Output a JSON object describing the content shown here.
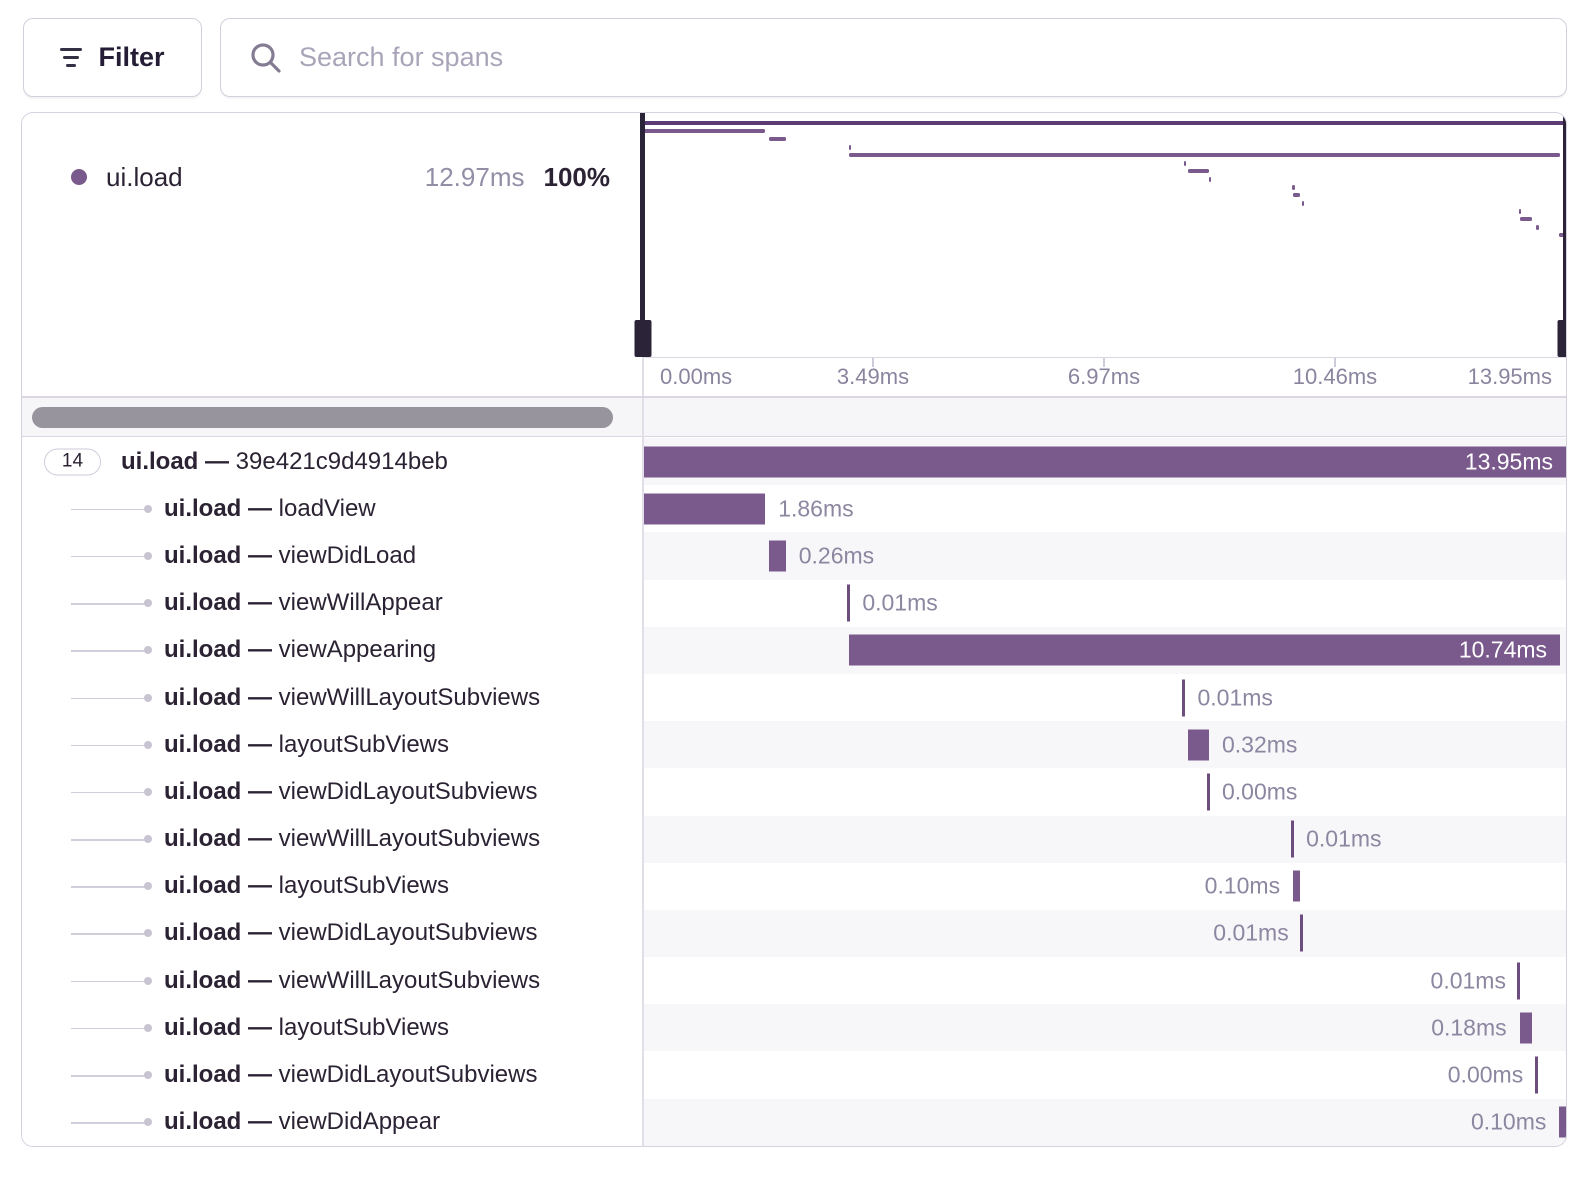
{
  "toolbar": {
    "filter_label": "Filter",
    "search_placeholder": "Search for spans"
  },
  "legend": {
    "op": "ui.load",
    "duration": "12.97ms",
    "percent": "100%"
  },
  "axis": {
    "tick_labels": [
      "0.00ms",
      "3.49ms",
      "6.97ms",
      "10.46ms",
      "13.95ms"
    ]
  },
  "trace": {
    "op_prefix": "ui.load",
    "separator": "—",
    "root_child_count": "14",
    "total_ms": 13.95,
    "spans": [
      {
        "name": "39e421c9d4914beb",
        "start_ms": 0.0,
        "duration_ms": 13.95,
        "duration_label": "13.95ms",
        "label_pos": "inside",
        "is_root": true
      },
      {
        "name": "loadView",
        "start_ms": 0.0,
        "duration_ms": 1.86,
        "duration_label": "1.86ms",
        "label_pos": "right"
      },
      {
        "name": "viewDidLoad",
        "start_ms": 1.91,
        "duration_ms": 0.26,
        "duration_label": "0.26ms",
        "label_pos": "right"
      },
      {
        "name": "viewWillAppear",
        "start_ms": 3.12,
        "duration_ms": 0.01,
        "duration_label": "0.01ms",
        "label_pos": "right"
      },
      {
        "name": "viewAppearing",
        "start_ms": 3.12,
        "duration_ms": 10.74,
        "duration_label": "10.74ms",
        "label_pos": "inside"
      },
      {
        "name": "viewWillLayoutSubviews",
        "start_ms": 8.18,
        "duration_ms": 0.01,
        "duration_label": "0.01ms",
        "label_pos": "right"
      },
      {
        "name": "layoutSubViews",
        "start_ms": 8.24,
        "duration_ms": 0.32,
        "duration_label": "0.32ms",
        "label_pos": "right"
      },
      {
        "name": "viewDidLayoutSubviews",
        "start_ms": 8.56,
        "duration_ms": 0.0,
        "duration_label": "0.00ms",
        "label_pos": "right"
      },
      {
        "name": "viewWillLayoutSubviews",
        "start_ms": 9.82,
        "duration_ms": 0.01,
        "duration_label": "0.01ms",
        "label_pos": "right"
      },
      {
        "name": "layoutSubViews",
        "start_ms": 9.83,
        "duration_ms": 0.1,
        "duration_label": "0.10ms",
        "label_pos": "left"
      },
      {
        "name": "viewDidLayoutSubviews",
        "start_ms": 9.96,
        "duration_ms": 0.01,
        "duration_label": "0.01ms",
        "label_pos": "left"
      },
      {
        "name": "viewWillLayoutSubviews",
        "start_ms": 13.24,
        "duration_ms": 0.01,
        "duration_label": "0.01ms",
        "label_pos": "left"
      },
      {
        "name": "layoutSubViews",
        "start_ms": 13.25,
        "duration_ms": 0.18,
        "duration_label": "0.18ms",
        "label_pos": "left"
      },
      {
        "name": "viewDidLayoutSubviews",
        "start_ms": 13.5,
        "duration_ms": 0.0,
        "duration_label": "0.00ms",
        "label_pos": "left"
      },
      {
        "name": "viewDidAppear",
        "start_ms": 13.85,
        "duration_ms": 0.1,
        "duration_label": "0.10ms",
        "label_pos": "left"
      }
    ]
  },
  "colors": {
    "span_bar": "#7a5a8c",
    "span_tick": "#6d4c80",
    "minimap_root_bar": "#5d3c74",
    "handle": "#2b2439",
    "row_alt_bg": "#f7f7fa",
    "text_dark": "#2b2233",
    "text_muted": "#8d86a0"
  }
}
